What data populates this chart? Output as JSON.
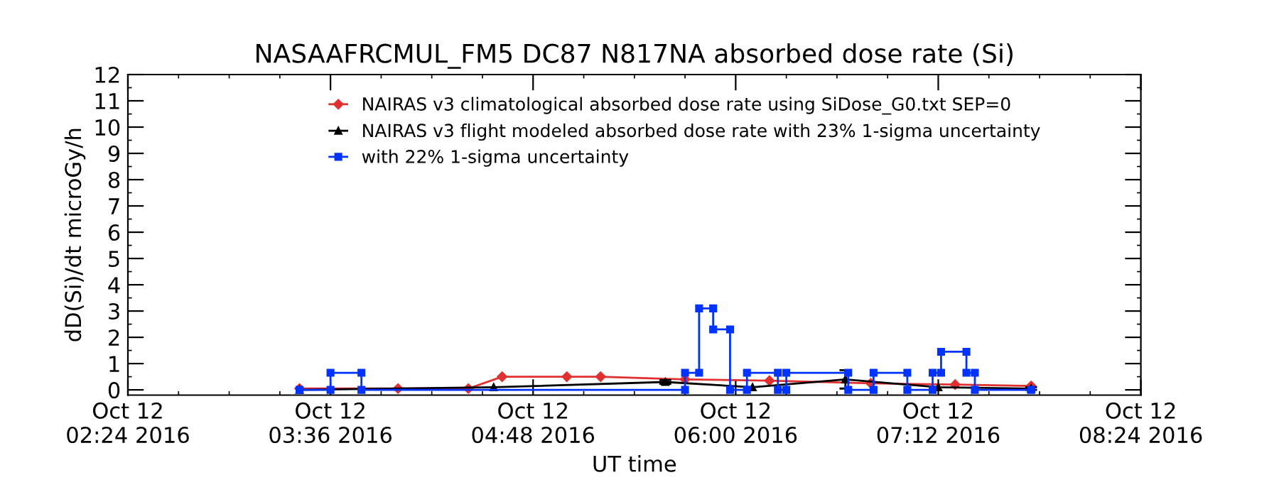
{
  "chart_data": {
    "type": "line",
    "title": "NASAAFRCMUL_FM5 DC87 N817NA absorbed dose rate (Si)",
    "xlabel": "UT time",
    "ylabel": "dD(Si)/dt microGy/h",
    "xlim": [
      "2016-10-12T02:24",
      "2016-10-12T08:24"
    ],
    "xticks": [
      {
        "value": "2016-10-12T02:24",
        "label": "Oct 12\n02:24 2016"
      },
      {
        "value": "2016-10-12T03:36",
        "label": "Oct 12\n03:36 2016"
      },
      {
        "value": "2016-10-12T04:48",
        "label": "Oct 12\n04:48 2016"
      },
      {
        "value": "2016-10-12T06:00",
        "label": "Oct 12\n06:00 2016"
      },
      {
        "value": "2016-10-12T07:12",
        "label": "Oct 12\n07:12 2016"
      },
      {
        "value": "2016-10-12T08:24",
        "label": "Oct 12\n08:24 2016"
      }
    ],
    "ylim": [
      -0.2,
      12
    ],
    "yticks": [
      0,
      1,
      2,
      3,
      4,
      5,
      6,
      7,
      8,
      9,
      10,
      11,
      12
    ],
    "grid": false,
    "legend": "top",
    "series": [
      {
        "name": "NAIRAS v3 climatological absorbed dose rate using SiDose_G0.txt SEP=0",
        "color": "#e03030",
        "marker": "diamond",
        "x": [
          "2016-10-12T03:25",
          "2016-10-12T04:00",
          "2016-10-12T04:25",
          "2016-10-12T04:37",
          "2016-10-12T05:00",
          "2016-10-12T05:12",
          "2016-10-12T05:42",
          "2016-10-12T06:12",
          "2016-10-12T06:48",
          "2016-10-12T07:18",
          "2016-10-12T07:45"
        ],
        "values": [
          0.05,
          0.05,
          0.05,
          0.5,
          0.5,
          0.5,
          0.4,
          0.35,
          0.25,
          0.2,
          0.15
        ]
      },
      {
        "name": "NAIRAS v3 flight modeled absorbed dose rate with 23% 1-sigma uncertainty",
        "color": "#000000",
        "marker": "triangle",
        "x": [
          "2016-10-12T03:25",
          "2016-10-12T04:34",
          "2016-10-12T05:35",
          "2016-10-12T06:06",
          "2016-10-12T06:39",
          "2016-10-12T07:12",
          "2016-10-12T07:45"
        ],
        "values": [
          0,
          0.1,
          0.3,
          0.1,
          0.4,
          0.1,
          0.05
        ],
        "errors": [
          null,
          null,
          0.07,
          null,
          0.35,
          null,
          0.05
        ]
      },
      {
        "name": "with 22% 1-sigma uncertainty",
        "color": "#0033ff",
        "marker": "square",
        "x": [
          "2016-10-12T03:25",
          "2016-10-12T03:36",
          "2016-10-12T03:36",
          "2016-10-12T03:47",
          "2016-10-12T03:47",
          "2016-10-12T05:42",
          "2016-10-12T05:42",
          "2016-10-12T05:47",
          "2016-10-12T05:47",
          "2016-10-12T05:52",
          "2016-10-12T05:52",
          "2016-10-12T05:58",
          "2016-10-12T05:58",
          "2016-10-12T06:04",
          "2016-10-12T06:04",
          "2016-10-12T06:15",
          "2016-10-12T06:15",
          "2016-10-12T06:18",
          "2016-10-12T06:18",
          "2016-10-12T06:40",
          "2016-10-12T06:40",
          "2016-10-12T06:49",
          "2016-10-12T06:49",
          "2016-10-12T07:01",
          "2016-10-12T07:01",
          "2016-10-12T07:10",
          "2016-10-12T07:10",
          "2016-10-12T07:13",
          "2016-10-12T07:13",
          "2016-10-12T07:22",
          "2016-10-12T07:22",
          "2016-10-12T07:25",
          "2016-10-12T07:25",
          "2016-10-12T07:45"
        ],
        "values": [
          0,
          0,
          0.65,
          0.65,
          0,
          0,
          0.65,
          0.65,
          3.1,
          3.1,
          2.3,
          2.3,
          0,
          0,
          0.65,
          0.65,
          0,
          0,
          0.65,
          0.65,
          0,
          0,
          0.65,
          0.65,
          0,
          0,
          0.65,
          0.65,
          1.45,
          1.45,
          0.65,
          0.65,
          0,
          0
        ]
      }
    ]
  }
}
